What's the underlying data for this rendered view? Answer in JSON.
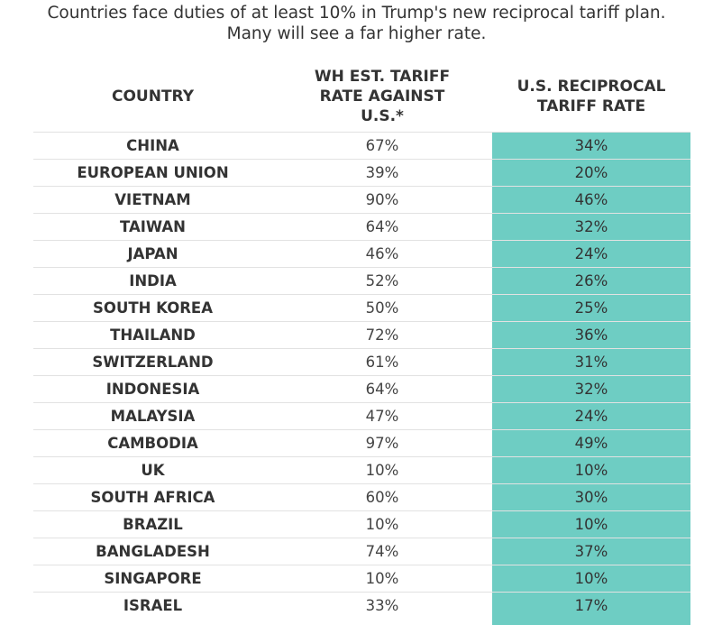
{
  "title_lines": [
    "Countries face duties of at least 10% in Trump's new reciprocal tariff plan.",
    "Many will see a far higher rate."
  ],
  "headers": {
    "country": "COUNTRY",
    "wh": [
      "WH EST. TARIFF",
      "RATE AGAINST",
      "U.S.*"
    ],
    "us": [
      "U.S. RECIPROCAL",
      "TARIFF RATE"
    ]
  },
  "colors": {
    "highlight": "#6ecdc3"
  },
  "chart_data": {
    "type": "table",
    "title": "Countries face duties of at least 10% in Trump's new reciprocal tariff plan. Many will see a far higher rate.",
    "columns": [
      "COUNTRY",
      "WH EST. TARIFF RATE AGAINST U.S.*",
      "U.S. RECIPROCAL TARIFF RATE"
    ],
    "rows": [
      {
        "country": "CHINA",
        "wh": "67%",
        "us": "34%"
      },
      {
        "country": "EUROPEAN UNION",
        "wh": "39%",
        "us": "20%"
      },
      {
        "country": "VIETNAM",
        "wh": "90%",
        "us": "46%"
      },
      {
        "country": "TAIWAN",
        "wh": "64%",
        "us": "32%"
      },
      {
        "country": "JAPAN",
        "wh": "46%",
        "us": "24%"
      },
      {
        "country": "INDIA",
        "wh": "52%",
        "us": "26%"
      },
      {
        "country": "SOUTH KOREA",
        "wh": "50%",
        "us": "25%"
      },
      {
        "country": "THAILAND",
        "wh": "72%",
        "us": "36%"
      },
      {
        "country": "SWITZERLAND",
        "wh": "61%",
        "us": "31%"
      },
      {
        "country": "INDONESIA",
        "wh": "64%",
        "us": "32%"
      },
      {
        "country": "MALAYSIA",
        "wh": "47%",
        "us": "24%"
      },
      {
        "country": "CAMBODIA",
        "wh": "97%",
        "us": "49%"
      },
      {
        "country": "UK",
        "wh": "10%",
        "us": "10%"
      },
      {
        "country": "SOUTH AFRICA",
        "wh": "60%",
        "us": "30%"
      },
      {
        "country": "BRAZIL",
        "wh": "10%",
        "us": "10%"
      },
      {
        "country": "BANGLADESH",
        "wh": "74%",
        "us": "37%"
      },
      {
        "country": "SINGAPORE",
        "wh": "10%",
        "us": "10%"
      },
      {
        "country": "ISRAEL",
        "wh": "33%",
        "us": "17%"
      }
    ]
  }
}
